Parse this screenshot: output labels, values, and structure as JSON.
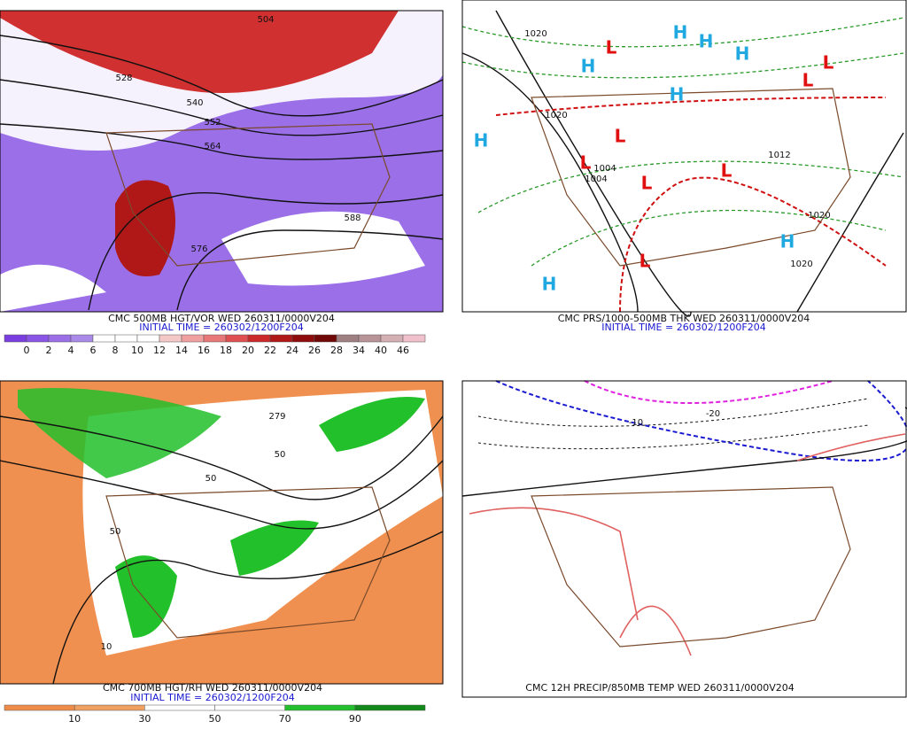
{
  "panels": [
    {
      "caption": "CMC 500MB HGT/VOR WED 260311/0000V204",
      "initial_time": "INITIAL TIME = 260302/1200F204",
      "colorbar": {
        "labels": [
          "0",
          "2",
          "4",
          "6",
          "8",
          "10",
          "12",
          "14",
          "16",
          "18",
          "20",
          "22",
          "24",
          "26",
          "28",
          "34",
          "40",
          "46"
        ],
        "colors": [
          "#7a3ee0",
          "#8a55e6",
          "#9a6fe8",
          "#a98ae8",
          "#ffffff",
          "#ffffff",
          "#ffffff",
          "#f5c8c8",
          "#f0a0a0",
          "#e87878",
          "#e05050",
          "#cc2a2a",
          "#b01818",
          "#8e0c0c",
          "#700808",
          "#9e7f82",
          "#b89498",
          "#d4b0b4",
          "#f0c0cc"
        ]
      },
      "contour_labels": [
        "504",
        "528",
        "540",
        "552",
        "564",
        "576",
        "588"
      ]
    },
    {
      "caption": "CMC PRS/1000-500MB THK WED 260311/0000V204",
      "initial_time": "INITIAL TIME = 260302/1200F204",
      "markers": [
        "H",
        "H",
        "H",
        "H",
        "H",
        "H",
        "H",
        "H",
        "L",
        "L",
        "L",
        "L",
        "L",
        "L",
        "L",
        "L"
      ],
      "contour_labels": [
        "1020",
        "1020",
        "1004",
        "1004",
        "1012",
        "1020",
        "1020"
      ]
    },
    {
      "caption": "CMC 700MB HGT/RH WED 260311/0000V204",
      "initial_time": "INITIAL TIME = 260302/1200F204",
      "colorbar": {
        "labels": [
          "10",
          "30",
          "50",
          "70",
          "90"
        ],
        "colors": [
          "#f08c48",
          "#f0a060",
          "#ffffff",
          "#ffffff",
          "#22c02a",
          "#128a1a"
        ]
      },
      "contour_labels": [
        "279",
        "50",
        "50",
        "50",
        "10"
      ]
    },
    {
      "caption": "CMC 12H PRECIP/850MB TEMP WED 260311/0000V204",
      "contour_labels": [
        "-20",
        "-10"
      ]
    }
  ]
}
